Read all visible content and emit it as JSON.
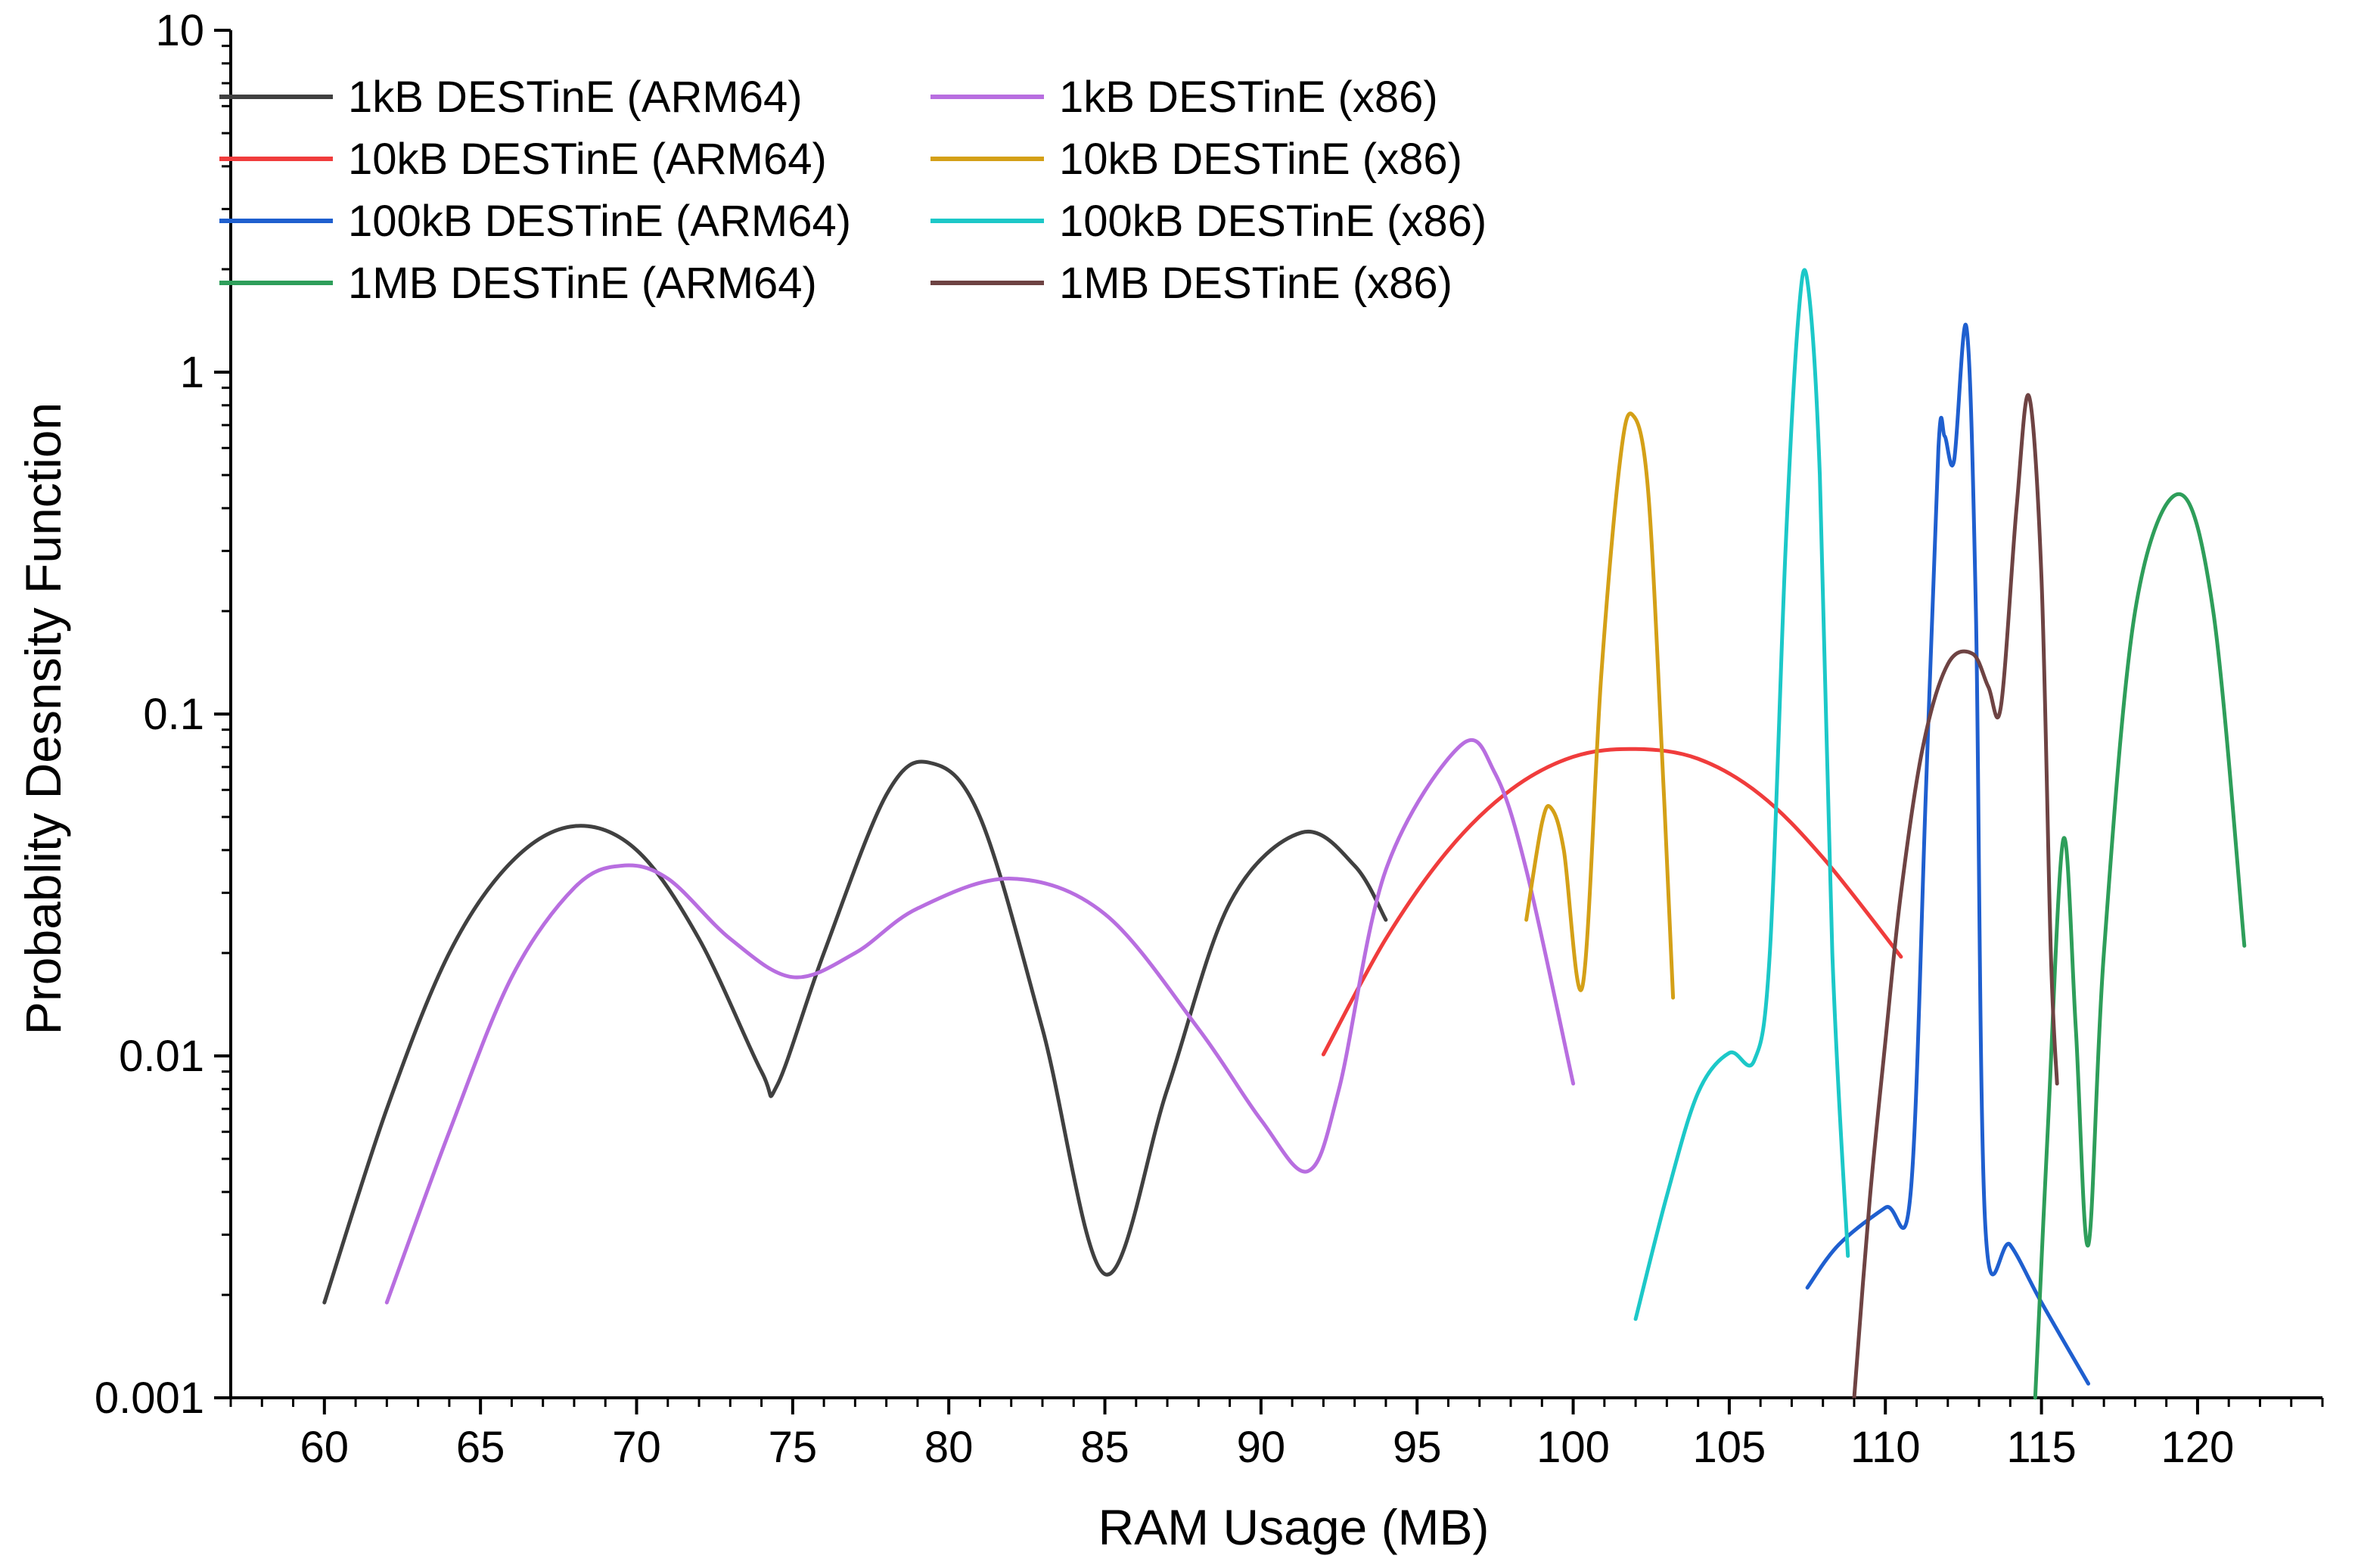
{
  "chart_data": {
    "type": "line",
    "title": "",
    "xlabel": "RAM Usage (MB)",
    "ylabel": "Probablity Desnsity Function",
    "xlim": [
      57,
      124
    ],
    "ylim": [
      0.001,
      10
    ],
    "yscale": "log",
    "grid": false,
    "legend_position": "top-left",
    "x_ticks": [
      60,
      65,
      70,
      75,
      80,
      85,
      90,
      95,
      100,
      105,
      110,
      115,
      120
    ],
    "x_tick_labels": [
      "60",
      "65",
      "70",
      "75",
      "80",
      "85",
      "90",
      "95",
      "100",
      "105",
      "110",
      "115",
      "120"
    ],
    "y_ticks": [
      0.001,
      0.01,
      0.1,
      1,
      10
    ],
    "y_tick_labels": [
      "0.001",
      "0.01",
      "0.1",
      "1",
      "10"
    ],
    "series": [
      {
        "name": "1kB DESTinE (ARM64)",
        "color": "#404040",
        "x": [
          60,
          62,
          64,
          66,
          68,
          70,
          72,
          74,
          74.5,
          76,
          78,
          79.4,
          81,
          83,
          85,
          87,
          89,
          91.3,
          93,
          94
        ],
        "y": [
          0.0019,
          0.007,
          0.02,
          0.037,
          0.047,
          0.04,
          0.022,
          0.009,
          0.0082,
          0.02,
          0.058,
          0.072,
          0.05,
          0.012,
          0.0023,
          0.008,
          0.028,
          0.045,
          0.036,
          0.025
        ]
      },
      {
        "name": "10kB DESTinE (ARM64)",
        "color": "#f03c3c",
        "x": [
          92,
          94,
          96,
          98,
          100,
          102,
          104,
          106,
          108,
          110.5
        ],
        "y": [
          0.0101,
          0.022,
          0.04,
          0.06,
          0.075,
          0.079,
          0.074,
          0.058,
          0.038,
          0.0195
        ]
      },
      {
        "name": "100kB DESTinE (ARM64)",
        "color": "#1f5fcf",
        "x": [
          107.5,
          108.5,
          110,
          110.8,
          111.3,
          111.7,
          111.9,
          112.2,
          112.6,
          112.9,
          113.2,
          114,
          115,
          116.5
        ],
        "y": [
          0.0021,
          0.0028,
          0.0036,
          0.0039,
          0.06,
          0.6,
          0.65,
          0.55,
          1.35,
          0.2,
          0.0032,
          0.0028,
          0.0019,
          0.0011
        ]
      },
      {
        "name": "1MB DESTinE (ARM64)",
        "color": "#2e9e5a",
        "x": [
          114.8,
          115.2,
          115.7,
          116.1,
          116.5,
          117,
          118,
          119.4,
          120.5,
          121.5
        ],
        "y": [
          0.001,
          0.006,
          0.043,
          0.012,
          0.0028,
          0.02,
          0.2,
          0.44,
          0.2,
          0.021
        ]
      },
      {
        "name": "1kB DESTinE (x86)",
        "color": "#b86ee0",
        "x": [
          62,
          64,
          66,
          68,
          69.5,
          71,
          73,
          75,
          77,
          79,
          82,
          85,
          88,
          90,
          91.5,
          92.5,
          94,
          96.4,
          97.5,
          98.5,
          100
        ],
        "y": [
          0.0019,
          0.006,
          0.017,
          0.031,
          0.036,
          0.033,
          0.022,
          0.017,
          0.02,
          0.027,
          0.033,
          0.026,
          0.012,
          0.0065,
          0.0046,
          0.008,
          0.035,
          0.081,
          0.067,
          0.035,
          0.0083
        ]
      },
      {
        "name": "10kB DESTinE (x86)",
        "color": "#d4a017",
        "x": [
          98.5,
          99,
          99.3,
          99.7,
          100.3,
          100.9,
          101.5,
          101.9,
          102.4,
          102.9,
          103.2
        ],
        "y": [
          0.025,
          0.048,
          0.053,
          0.04,
          0.016,
          0.13,
          0.55,
          0.75,
          0.45,
          0.06,
          0.0148
        ]
      },
      {
        "name": "100kB DESTinE (x86)",
        "color": "#1cc8c8",
        "x": [
          102,
          103,
          104,
          105,
          105.8,
          106.3,
          106.8,
          107.2,
          107.5,
          107.9,
          108.3,
          108.8
        ],
        "y": [
          0.0017,
          0.0039,
          0.0078,
          0.0102,
          0.0097,
          0.02,
          0.3,
          1.4,
          1.85,
          0.5,
          0.02,
          0.0026
        ]
      },
      {
        "name": "1MB DESTinE (x86)",
        "color": "#6e4343",
        "x": [
          109,
          109.5,
          110,
          110.5,
          111.2,
          112,
          112.8,
          113.3,
          113.7,
          114.2,
          114.6,
          115,
          115.3,
          115.5
        ],
        "y": [
          0.001,
          0.0038,
          0.011,
          0.03,
          0.08,
          0.14,
          0.15,
          0.12,
          0.105,
          0.4,
          0.85,
          0.25,
          0.02,
          0.0083
        ]
      }
    ]
  }
}
